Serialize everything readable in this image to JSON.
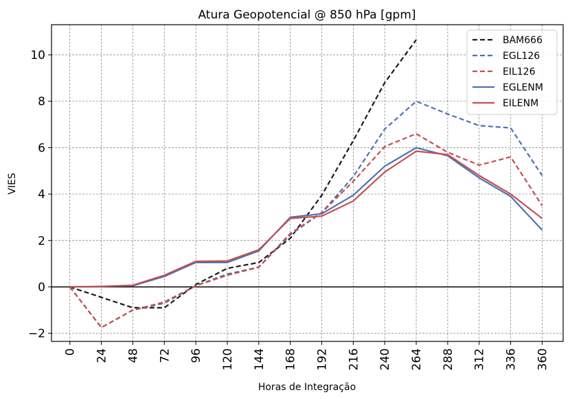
{
  "chart_data": {
    "type": "line",
    "title": "Atura Geopotencial @ 850 hPa [gpm]",
    "xlabel": "Horas de Integração",
    "ylabel": "VIES",
    "categories": [
      "0",
      "24",
      "48",
      "72",
      "96",
      "120",
      "144",
      "168",
      "192",
      "216",
      "240",
      "264",
      "288",
      "312",
      "336",
      "360"
    ],
    "x": [
      0,
      24,
      48,
      72,
      96,
      120,
      144,
      168,
      192,
      216,
      240,
      264,
      288,
      312,
      336,
      360
    ],
    "xlim": [
      -14,
      376
    ],
    "ylim": [
      -2.35,
      11.3
    ],
    "yticks": [
      -2,
      0,
      2,
      4,
      6,
      8,
      10
    ],
    "ytick_labels": [
      "−2",
      "0",
      "2",
      "4",
      "6",
      "8",
      "10"
    ],
    "grid": true,
    "zero_line": true,
    "legend": "top-right",
    "series": [
      {
        "name": "BAM666",
        "color": "#1a1a1a",
        "style": "dashed",
        "values": [
          0,
          -0.45,
          -0.9,
          -0.9,
          0.1,
          0.8,
          1.05,
          2.1,
          3.95,
          6.3,
          8.8,
          10.65,
          null,
          null,
          null,
          null
        ]
      },
      {
        "name": "EGL126",
        "color": "#4c72b0",
        "style": "dashed",
        "values": [
          0,
          -1.75,
          -1.0,
          -0.7,
          0.05,
          0.55,
          0.85,
          2.25,
          3.2,
          4.75,
          6.8,
          8.0,
          7.45,
          6.95,
          6.85,
          4.8
        ]
      },
      {
        "name": "EIL126",
        "color": "#c44e52",
        "style": "dashed",
        "values": [
          0,
          -1.75,
          -1.0,
          -0.65,
          0.05,
          0.5,
          0.85,
          2.3,
          3.2,
          4.55,
          6.05,
          6.6,
          5.8,
          5.25,
          5.6,
          3.5
        ]
      },
      {
        "name": "EGLENM",
        "color": "#4c72b0",
        "style": "solid",
        "values": [
          0,
          0.02,
          0.05,
          0.45,
          1.05,
          1.05,
          1.55,
          3.0,
          3.15,
          3.95,
          5.2,
          6.0,
          5.65,
          4.7,
          3.9,
          2.45
        ]
      },
      {
        "name": "EILENM",
        "color": "#c44e52",
        "style": "solid",
        "values": [
          0,
          0.02,
          0.07,
          0.5,
          1.1,
          1.12,
          1.6,
          2.95,
          3.05,
          3.7,
          4.95,
          5.85,
          5.7,
          4.8,
          4.0,
          2.95
        ]
      }
    ]
  }
}
